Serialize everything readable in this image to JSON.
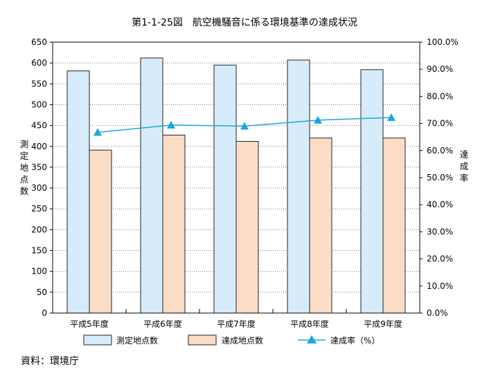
{
  "title": "第1-1-25図　航空機騒音に係る環境基準の達成状況",
  "source": "資料：環境庁",
  "chart_data": {
    "type": "bar",
    "categories": [
      "平成5年度",
      "平成6年度",
      "平成7年度",
      "平成8年度",
      "平成9年度"
    ],
    "series": [
      {
        "name": "測定地点数",
        "type": "bar",
        "axis": "left",
        "color": "#d6ecfa",
        "values": [
          581,
          612,
          595,
          607,
          584
        ]
      },
      {
        "name": "達成地点数",
        "type": "bar",
        "axis": "left",
        "color": "#fbdcc6",
        "values": [
          391,
          427,
          412,
          420,
          420
        ]
      },
      {
        "name": "達成率（%）",
        "type": "line",
        "axis": "right",
        "color": "#18a8dc",
        "marker": "triangle",
        "values": [
          66.7,
          69.4,
          69.0,
          71.2,
          72.2
        ]
      }
    ],
    "ylabel": "測定地点数",
    "y2label": "達成率",
    "ylim": [
      0,
      650
    ],
    "y2lim": [
      0,
      100
    ],
    "yticks": [
      "0",
      "50",
      "100",
      "150",
      "200",
      "250",
      "300",
      "350",
      "400",
      "450",
      "500",
      "550",
      "600",
      "650"
    ],
    "y2ticks": [
      "0.0%",
      "10.0%",
      "20.0%",
      "30.0%",
      "40.0%",
      "50.0%",
      "60.0%",
      "70.0%",
      "80.0%",
      "90.0%",
      "100.0%"
    ],
    "grid": "horizontal-dotted",
    "legend_position": "bottom"
  }
}
